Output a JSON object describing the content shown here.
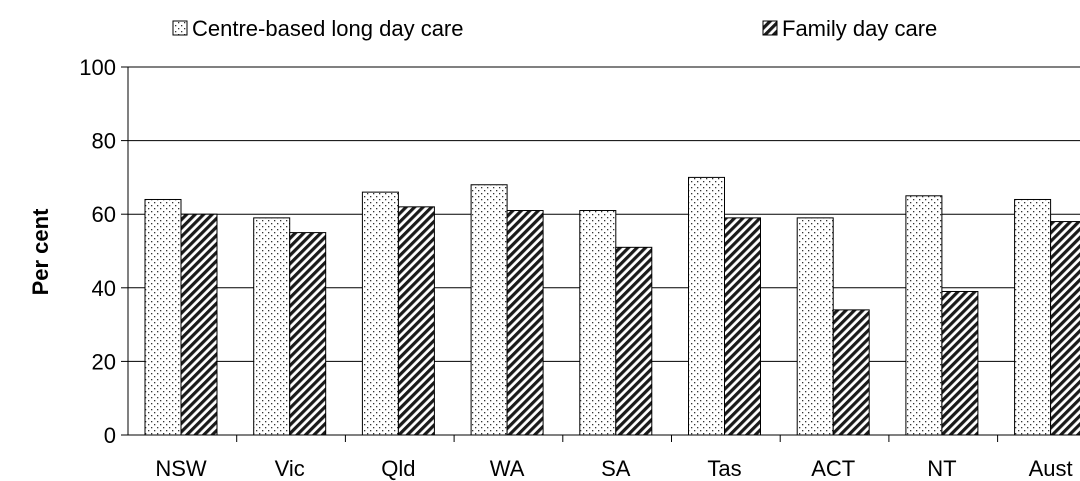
{
  "chart_data": {
    "type": "bar",
    "title": "",
    "xlabel": "",
    "ylabel": "Per cent",
    "ylim": [
      0,
      100
    ],
    "yticks": [
      "0",
      "20",
      "40",
      "60",
      "80",
      "100"
    ],
    "grid": true,
    "legend_position": "top",
    "categories": [
      "NSW",
      "Vic",
      "Qld",
      "WA",
      "SA",
      "Tas",
      "ACT",
      "NT",
      "Aust"
    ],
    "series": [
      {
        "name": "Centre-based long day care",
        "pattern": "dotted",
        "values": [
          64,
          59,
          66,
          68,
          61,
          70,
          59,
          65,
          64
        ]
      },
      {
        "name": "Family day care",
        "pattern": "diagonal-hatch",
        "values": [
          60,
          55,
          62,
          61,
          51,
          59,
          34,
          39,
          58
        ]
      }
    ]
  }
}
